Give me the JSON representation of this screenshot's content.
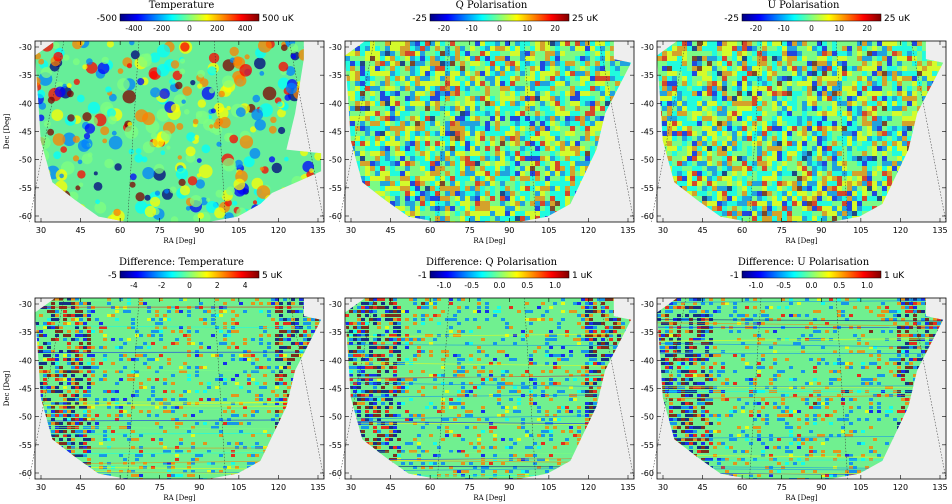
{
  "colors": {
    "background": "#ffffff",
    "map_background": "#eeeeee",
    "colormap": [
      "#00007f",
      "#0000ff",
      "#0080ff",
      "#00ffff",
      "#80ff80",
      "#ffff00",
      "#ff8000",
      "#ff0000",
      "#7f0000"
    ]
  },
  "x_axis": {
    "label": "RA [Deg]",
    "ticks": [
      "30",
      "45",
      "60",
      "75",
      "90",
      "105",
      "120",
      "135"
    ]
  },
  "y_axis": {
    "label": "Dec [Deg]",
    "ticks": [
      "-30",
      "-35",
      "-40",
      "-45",
      "-50",
      "-55",
      "-60"
    ]
  },
  "panels": [
    {
      "title": "Temperature",
      "scale_min": "-500",
      "scale_max": "500 uK",
      "scale_ticks": [
        "-400",
        "-200",
        "0",
        "200",
        "400"
      ],
      "style": "cmb"
    },
    {
      "title": "Q Polarisation",
      "scale_min": "-25",
      "scale_max": "25 uK",
      "scale_ticks": [
        "-20",
        "-10",
        "0",
        "10",
        "20"
      ],
      "style": "noise"
    },
    {
      "title": "U Polarisation",
      "scale_min": "-25",
      "scale_max": "25 uK",
      "scale_ticks": [
        "-20",
        "-10",
        "0",
        "10",
        "20"
      ],
      "style": "noise"
    },
    {
      "title": "Difference: Temperature",
      "scale_min": "-5",
      "scale_max": "5 uK",
      "scale_ticks": [
        "-4",
        "-2",
        "0",
        "2",
        "4"
      ],
      "style": "diff"
    },
    {
      "title": "Difference: Q Polarisation",
      "scale_min": "-1",
      "scale_max": "1 uK",
      "scale_ticks": [
        "-1.0",
        "-0.5",
        "0.0",
        "0.5",
        "1.0"
      ],
      "style": "diff"
    },
    {
      "title": "Difference: U Polarisation",
      "scale_min": "-1",
      "scale_max": "1 uK",
      "scale_ticks": [
        "-1.0",
        "-0.5",
        "0.0",
        "0.5",
        "1.0"
      ],
      "style": "diff"
    }
  ]
}
